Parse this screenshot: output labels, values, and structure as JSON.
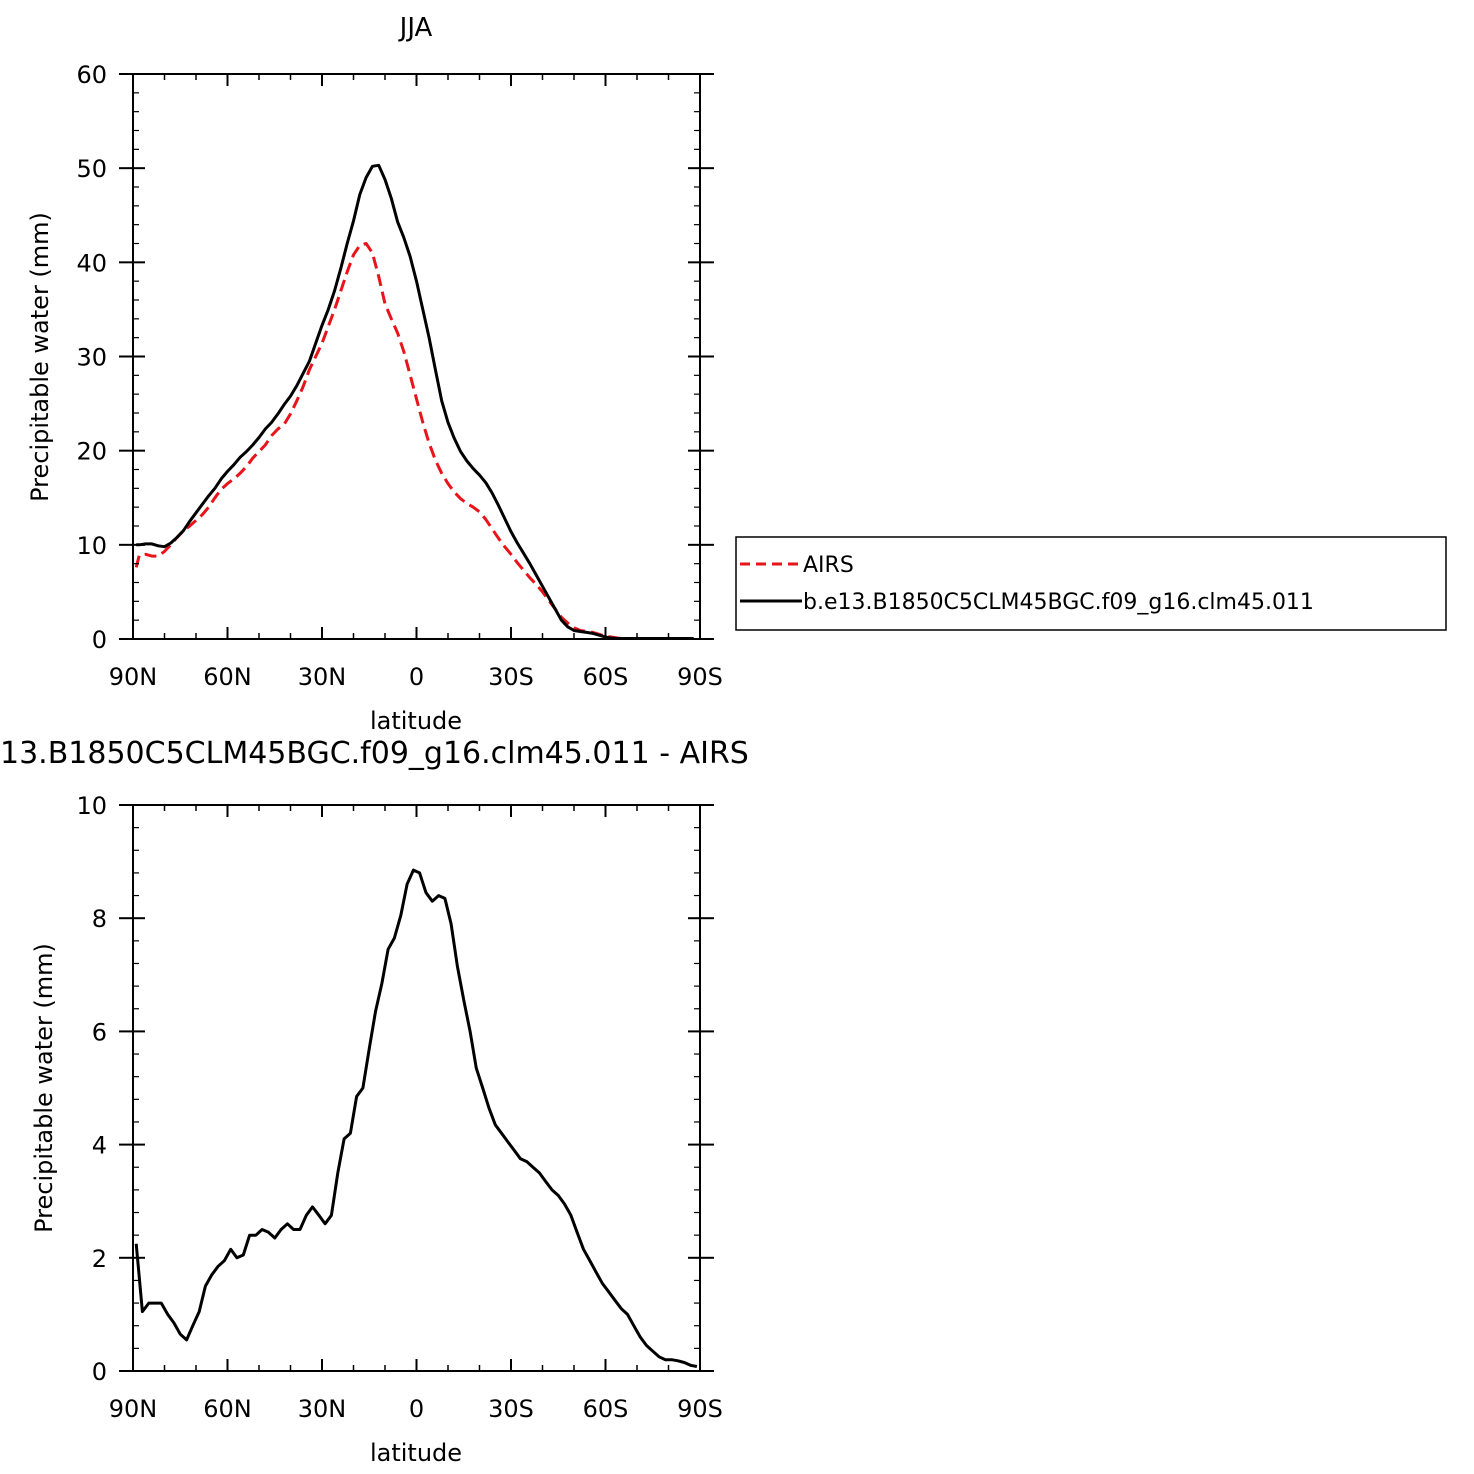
{
  "chart_data": [
    {
      "type": "line",
      "title": "JJA",
      "xlabel": "latitude",
      "ylabel": "Precipitable water (mm)",
      "xlim": [
        90,
        -90
      ],
      "ylim": [
        0,
        60
      ],
      "x_ticks": [
        {
          "value": 90,
          "label": "90N"
        },
        {
          "value": 60,
          "label": "60N"
        },
        {
          "value": 30,
          "label": "30N"
        },
        {
          "value": 0,
          "label": "0"
        },
        {
          "value": -30,
          "label": "30S"
        },
        {
          "value": -60,
          "label": "60S"
        },
        {
          "value": -90,
          "label": "90S"
        }
      ],
      "y_ticks": [
        0,
        10,
        20,
        30,
        40,
        50,
        60
      ],
      "legend_placement": "right, outside",
      "series": [
        {
          "name": "AIRS",
          "color": "#e8141a",
          "dash": "dashed",
          "x": [
            89,
            88,
            86,
            84,
            82,
            80,
            78,
            76,
            74,
            72,
            70,
            68,
            66,
            64,
            62,
            60,
            58,
            56,
            54,
            52,
            50,
            48,
            46,
            44,
            42,
            40,
            38,
            36,
            34,
            32,
            30,
            28,
            26,
            24,
            22,
            20,
            18,
            16,
            14,
            12,
            10,
            8,
            6,
            4,
            2,
            0,
            -2,
            -4,
            -6,
            -8,
            -10,
            -12,
            -14,
            -16,
            -18,
            -20,
            -22,
            -24,
            -26,
            -28,
            -30,
            -32,
            -34,
            -36,
            -38,
            -40,
            -42,
            -44,
            -46,
            -48,
            -50,
            -52,
            -54,
            -56,
            -58,
            -60,
            -62,
            -64,
            -66,
            -68,
            -70,
            -72,
            -74,
            -76,
            -78,
            -80,
            -82,
            -84,
            -86,
            -88
          ],
          "y": [
            7.6,
            8.9,
            9.0,
            8.8,
            8.8,
            9.3,
            10.0,
            10.8,
            11.5,
            12.0,
            12.6,
            13.2,
            14.0,
            15.0,
            15.9,
            16.5,
            17.0,
            17.6,
            18.3,
            19.2,
            19.9,
            20.6,
            21.6,
            22.3,
            22.8,
            23.9,
            25.3,
            26.8,
            28.6,
            30.0,
            31.4,
            33.2,
            35.0,
            37.0,
            39.0,
            40.8,
            41.8,
            42.0,
            41.0,
            38.5,
            35.6,
            34.0,
            32.5,
            30.5,
            28.0,
            25.5,
            23.0,
            20.8,
            19.0,
            17.6,
            16.5,
            15.6,
            14.9,
            14.4,
            14.0,
            13.5,
            12.7,
            11.7,
            10.7,
            9.8,
            9.0,
            8.1,
            7.3,
            6.5,
            5.8,
            5.0,
            4.1,
            3.2,
            2.3,
            1.7,
            1.2,
            0.9,
            0.8,
            0.7,
            0.5,
            0.3,
            0.2,
            0.1,
            0.05,
            0.05,
            0.05,
            0.05,
            0.05,
            0.05,
            0.05,
            0.05,
            0.05,
            0.05,
            0.05,
            0.05
          ]
        },
        {
          "name": "b.e13.B1850C5CLM45BGC.f09_g16.clm45.011",
          "color": "#000000",
          "dash": "solid",
          "x": [
            89,
            88,
            86,
            84,
            82,
            80,
            78,
            76,
            74,
            72,
            70,
            68,
            66,
            64,
            62,
            60,
            58,
            56,
            54,
            52,
            50,
            48,
            46,
            44,
            42,
            40,
            38,
            36,
            34,
            32,
            30,
            28,
            26,
            24,
            22,
            20,
            18,
            16,
            14,
            12,
            10,
            8,
            6,
            4,
            2,
            0,
            -2,
            -4,
            -6,
            -8,
            -10,
            -12,
            -14,
            -16,
            -18,
            -20,
            -22,
            -24,
            -26,
            -28,
            -30,
            -32,
            -34,
            -36,
            -38,
            -40,
            -42,
            -44,
            -46,
            -48,
            -50,
            -52,
            -54,
            -56,
            -58,
            -60,
            -62,
            -64,
            -66,
            -68,
            -70,
            -72,
            -74,
            -76,
            -78,
            -80,
            -82,
            -84,
            -86,
            -88
          ],
          "y": [
            10.0,
            10.0,
            10.1,
            10.1,
            9.9,
            9.8,
            10.2,
            10.8,
            11.5,
            12.5,
            13.4,
            14.3,
            15.2,
            16.0,
            17.0,
            17.8,
            18.5,
            19.3,
            19.9,
            20.6,
            21.4,
            22.3,
            23.0,
            23.9,
            24.9,
            25.8,
            26.9,
            28.2,
            29.5,
            31.4,
            33.3,
            35.0,
            37.0,
            39.4,
            42.0,
            44.4,
            47.2,
            49.0,
            50.2,
            50.3,
            48.8,
            46.8,
            44.3,
            42.6,
            40.6,
            38.0,
            35.0,
            32.0,
            28.6,
            25.3,
            23.0,
            21.3,
            19.9,
            18.9,
            18.1,
            17.4,
            16.6,
            15.5,
            14.2,
            12.8,
            11.4,
            10.2,
            9.1,
            8.0,
            6.8,
            5.6,
            4.4,
            3.2,
            2.0,
            1.3,
            0.9,
            0.8,
            0.7,
            0.6,
            0.4,
            0.2,
            0.1,
            0.05,
            0.05,
            0.05,
            0.05,
            0.05,
            0.05,
            0.05,
            0.05,
            0.05,
            0.05,
            0.05,
            0.05,
            0.05
          ]
        }
      ]
    },
    {
      "type": "line",
      "title": "13.B1850C5CLM45BGC.f09_g16.clm45.011 - AIRS",
      "xlabel": "latitude",
      "ylabel": "Precipitable water (mm)",
      "xlim": [
        90,
        -90
      ],
      "ylim": [
        0,
        10
      ],
      "x_ticks": [
        {
          "value": 90,
          "label": "90N"
        },
        {
          "value": 60,
          "label": "60N"
        },
        {
          "value": 30,
          "label": "30N"
        },
        {
          "value": 0,
          "label": "0"
        },
        {
          "value": -30,
          "label": "30S"
        },
        {
          "value": -60,
          "label": "60S"
        },
        {
          "value": -90,
          "label": "90S"
        }
      ],
      "y_ticks": [
        0,
        2,
        4,
        6,
        8,
        10
      ],
      "series": [
        {
          "color": "#000000",
          "dash": "solid",
          "x": [
            89,
            87,
            85,
            83,
            81,
            79,
            77,
            75,
            73,
            71,
            69,
            67,
            65,
            63,
            61,
            59,
            57,
            55,
            53,
            51,
            49,
            47,
            45,
            43,
            41,
            39,
            37,
            35,
            33,
            31,
            29,
            27,
            25,
            23,
            21,
            19,
            17,
            15,
            13,
            11,
            9,
            7,
            5,
            3,
            1,
            -1,
            -3,
            -5,
            -7,
            -9,
            -11,
            -13,
            -15,
            -17,
            -19,
            -21,
            -23,
            -25,
            -27,
            -29,
            -31,
            -33,
            -35,
            -37,
            -39,
            -41,
            -43,
            -45,
            -47,
            -49,
            -51,
            -53,
            -55,
            -57,
            -59,
            -61,
            -63,
            -65,
            -67,
            -69,
            -71,
            -73,
            -75,
            -77,
            -79,
            -81,
            -83,
            -85,
            -87,
            -89
          ],
          "y": [
            2.25,
            1.05,
            1.2,
            1.2,
            1.2,
            1.0,
            0.85,
            0.65,
            0.55,
            0.8,
            1.05,
            1.5,
            1.7,
            1.85,
            1.95,
            2.15,
            2.0,
            2.05,
            2.4,
            2.4,
            2.5,
            2.45,
            2.35,
            2.5,
            2.6,
            2.5,
            2.5,
            2.75,
            2.9,
            2.75,
            2.6,
            2.75,
            3.5,
            4.1,
            4.2,
            4.85,
            5.0,
            5.7,
            6.35,
            6.85,
            7.45,
            7.65,
            8.05,
            8.6,
            8.85,
            8.8,
            8.45,
            8.3,
            8.4,
            8.35,
            7.9,
            7.15,
            6.55,
            6.0,
            5.35,
            5.0,
            4.65,
            4.35,
            4.2,
            4.05,
            3.9,
            3.75,
            3.7,
            3.6,
            3.5,
            3.35,
            3.2,
            3.1,
            2.95,
            2.75,
            2.45,
            2.15,
            1.95,
            1.75,
            1.55,
            1.4,
            1.25,
            1.1,
            1.0,
            0.8,
            0.6,
            0.45,
            0.35,
            0.25,
            0.2,
            0.2,
            0.18,
            0.15,
            0.1,
            0.08
          ]
        }
      ]
    }
  ]
}
